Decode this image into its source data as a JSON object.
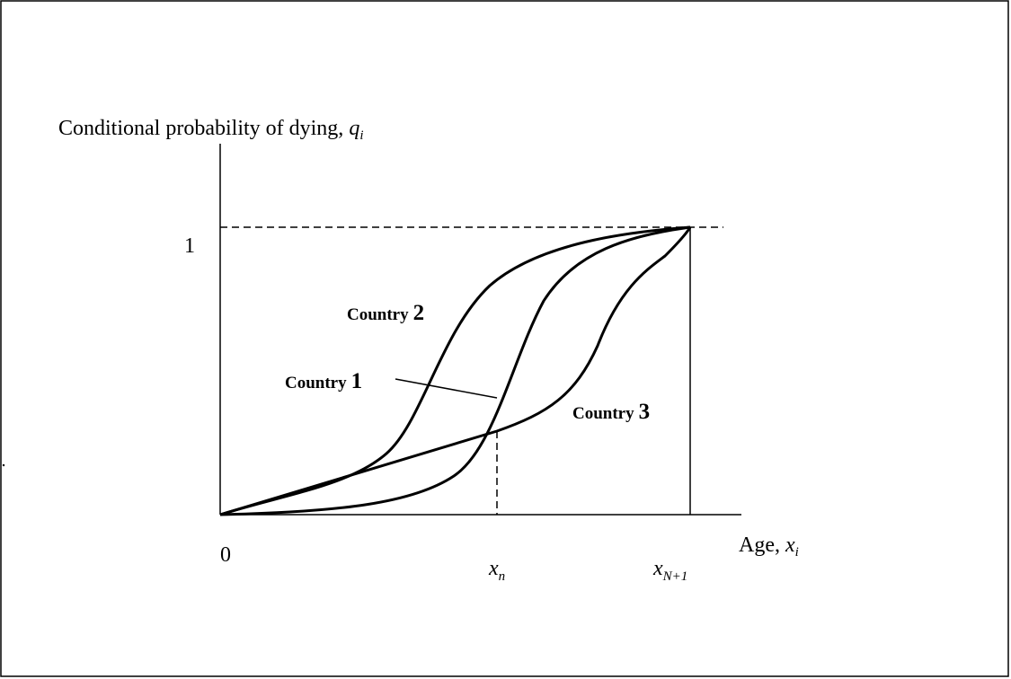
{
  "y_label": {
    "text": "Conditional probability of dying, ",
    "var": "q",
    "sub": "i"
  },
  "x_label": {
    "text": "Age, ",
    "var": "x",
    "sub": "i"
  },
  "y_ticks": [
    "1"
  ],
  "x_ticks": [
    {
      "text": "0"
    },
    {
      "var": "x",
      "sub": "n"
    },
    {
      "var": "x",
      "sub": "N+1"
    }
  ],
  "curves": [
    {
      "word": "Country",
      "number": "2"
    },
    {
      "word": "Country",
      "number": "1"
    },
    {
      "word": "Country",
      "number": "3"
    }
  ]
}
